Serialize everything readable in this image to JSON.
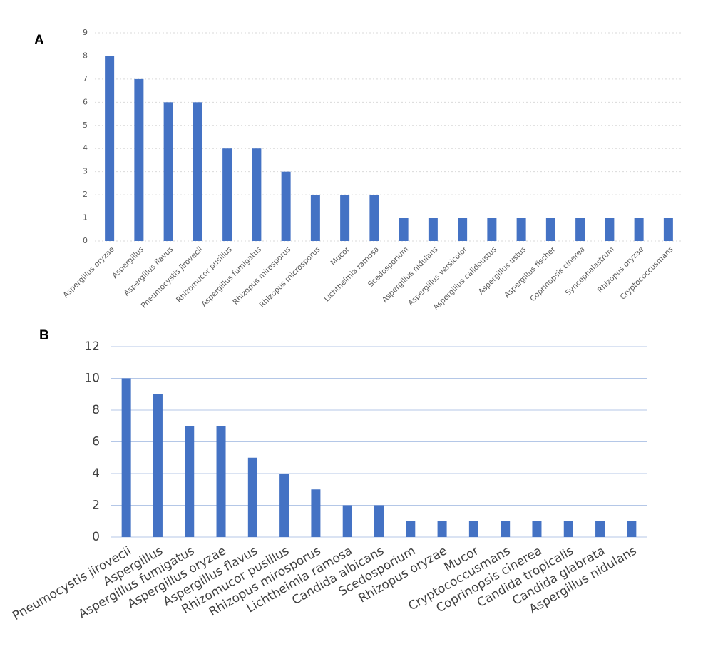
{
  "panels": {
    "a": "A",
    "b": "B"
  },
  "chart_data": [
    {
      "type": "bar",
      "panel": "A",
      "ylim": [
        0,
        9
      ],
      "yticks": [
        0,
        1,
        2,
        3,
        4,
        5,
        6,
        7,
        8,
        9
      ],
      "grid": true,
      "color": "#4472C4",
      "categories": [
        "Aspergillus oryzae",
        "Aspergillus",
        "Aspergillus flavus",
        "Pneumocystis jirovecii",
        "Rhizomucor pusillus",
        "Aspergillus fumigatus",
        "Rhizopus mirosporus",
        "Rhizopus microsporus",
        "Mucor",
        "Lichtheimia ramosa",
        "Scedosporium",
        "Aspergillus nidulans",
        "Aspergillus versicolor",
        "Aspergillus calidoustus",
        "Aspergillus ustus",
        "Aspergillus fischer",
        "Coprinopsis cinerea",
        "Syncephalastrum",
        "Rhizopus oryzae",
        "Cryptococcusmans"
      ],
      "values": [
        8,
        7,
        6,
        6,
        4,
        4,
        3,
        2,
        2,
        2,
        1,
        1,
        1,
        1,
        1,
        1,
        1,
        1,
        1,
        1
      ]
    },
    {
      "type": "bar",
      "panel": "B",
      "ylim": [
        0,
        12
      ],
      "yticks": [
        0,
        2,
        4,
        6,
        8,
        10,
        12
      ],
      "grid": true,
      "color": "#4472C4",
      "categories": [
        "Pneumocystis jirovecii",
        "Aspergillus",
        "Aspergillus fumigatus",
        "Aspergillus oryzae",
        "Aspergillus flavus",
        "Rhizomucor pusillus",
        "Rhizopus mirosporus",
        "Lichtheimia ramosa",
        "Candida albicans",
        "Scedosporium",
        "Rhizopus oryzae",
        "Mucor",
        "Cryptococcusmans",
        "Coprinopsis cinerea",
        "Candida tropicalis",
        "Candida glabrata",
        "Aspergillus nidulans"
      ],
      "values": [
        10,
        9,
        7,
        7,
        5,
        4,
        3,
        2,
        2,
        1,
        1,
        1,
        1,
        1,
        1,
        1,
        1
      ]
    }
  ]
}
